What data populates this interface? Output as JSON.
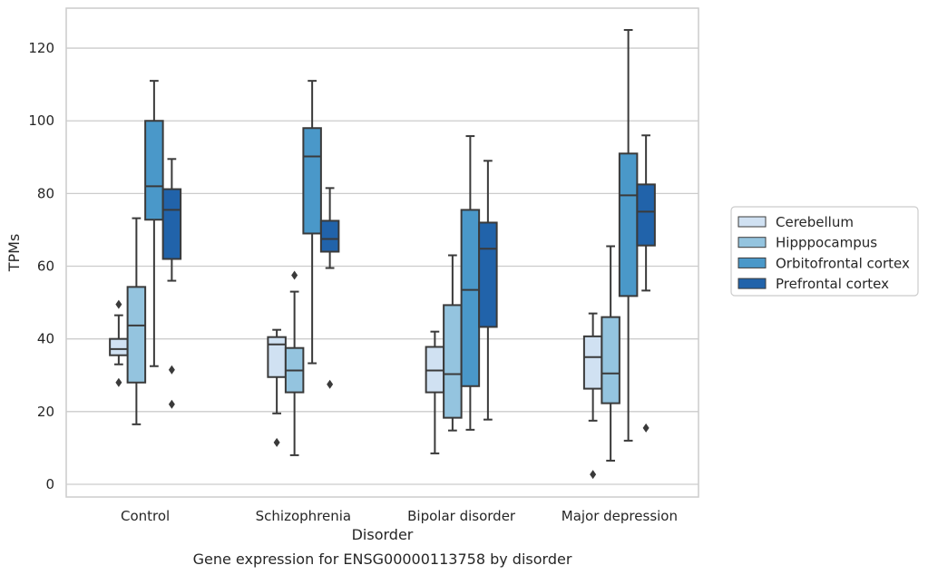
{
  "chart_data": {
    "type": "box",
    "title": "Gene expression for ENSG00000113758 by disorder",
    "xlabel": "Disorder",
    "ylabel": "TPMs",
    "ylim": [
      -3.5,
      131
    ],
    "yticks": [
      0,
      20,
      40,
      60,
      80,
      100,
      120
    ],
    "grid": true,
    "legend_position": "right",
    "categories": [
      "Control",
      "Schizophrenia",
      "Bipolar disorder",
      "Major depression"
    ],
    "series": [
      {
        "name": "Cerebellum",
        "color": "#d0e1f2",
        "boxes": [
          {
            "whislo": 33,
            "q1": 35.5,
            "med": 37.2,
            "q3": 40,
            "whishi": 46.5,
            "fliers": [
              49.5,
              28
            ]
          },
          {
            "whislo": 19.5,
            "q1": 29.5,
            "med": 38.5,
            "q3": 40.5,
            "whishi": 42.5,
            "fliers": [
              11.5
            ]
          },
          {
            "whislo": 8.5,
            "q1": 25.3,
            "med": 31.3,
            "q3": 37.8,
            "whishi": 42,
            "fliers": []
          },
          {
            "whislo": 17.5,
            "q1": 26.3,
            "med": 35,
            "q3": 40.7,
            "whishi": 47,
            "fliers": [
              2.7
            ]
          }
        ]
      },
      {
        "name": "Hipppocampus",
        "color": "#94c4df",
        "boxes": [
          {
            "whislo": 16.5,
            "q1": 28,
            "med": 43.7,
            "q3": 54.3,
            "whishi": 73.2,
            "fliers": []
          },
          {
            "whislo": 8,
            "q1": 25.3,
            "med": 31.3,
            "q3": 37.5,
            "whishi": 53,
            "fliers": [
              57.5
            ]
          },
          {
            "whislo": 14.8,
            "q1": 18.3,
            "med": 30.3,
            "q3": 49.3,
            "whishi": 63,
            "fliers": []
          },
          {
            "whislo": 6.5,
            "q1": 22.3,
            "med": 30.5,
            "q3": 46,
            "whishi": 65.5,
            "fliers": []
          }
        ]
      },
      {
        "name": "Orbitofrontal cortex",
        "color": "#4a98c9",
        "boxes": [
          {
            "whislo": 32.5,
            "q1": 72.8,
            "med": 82,
            "q3": 100,
            "whishi": 111,
            "fliers": []
          },
          {
            "whislo": 33.3,
            "q1": 69,
            "med": 90.2,
            "q3": 98,
            "whishi": 111,
            "fliers": []
          },
          {
            "whislo": 15,
            "q1": 27,
            "med": 53.5,
            "q3": 75.5,
            "whishi": 95.8,
            "fliers": []
          },
          {
            "whislo": 12,
            "q1": 51.8,
            "med": 79.5,
            "q3": 91,
            "whishi": 125,
            "fliers": []
          }
        ]
      },
      {
        "name": "Prefrontal cortex",
        "color": "#2163aa",
        "boxes": [
          {
            "whislo": 56,
            "q1": 62,
            "med": 75.5,
            "q3": 81.2,
            "whishi": 89.5,
            "fliers": [
              31.5,
              22
            ]
          },
          {
            "whislo": 59.5,
            "q1": 64,
            "med": 67.5,
            "q3": 72.5,
            "whishi": 81.5,
            "fliers": [
              27.5
            ]
          },
          {
            "whislo": 17.8,
            "q1": 43.3,
            "med": 64.8,
            "q3": 72,
            "whishi": 89,
            "fliers": []
          },
          {
            "whislo": 53.3,
            "q1": 65.7,
            "med": 75,
            "q3": 82.5,
            "whishi": 96,
            "fliers": [
              15.5
            ]
          }
        ]
      }
    ]
  }
}
